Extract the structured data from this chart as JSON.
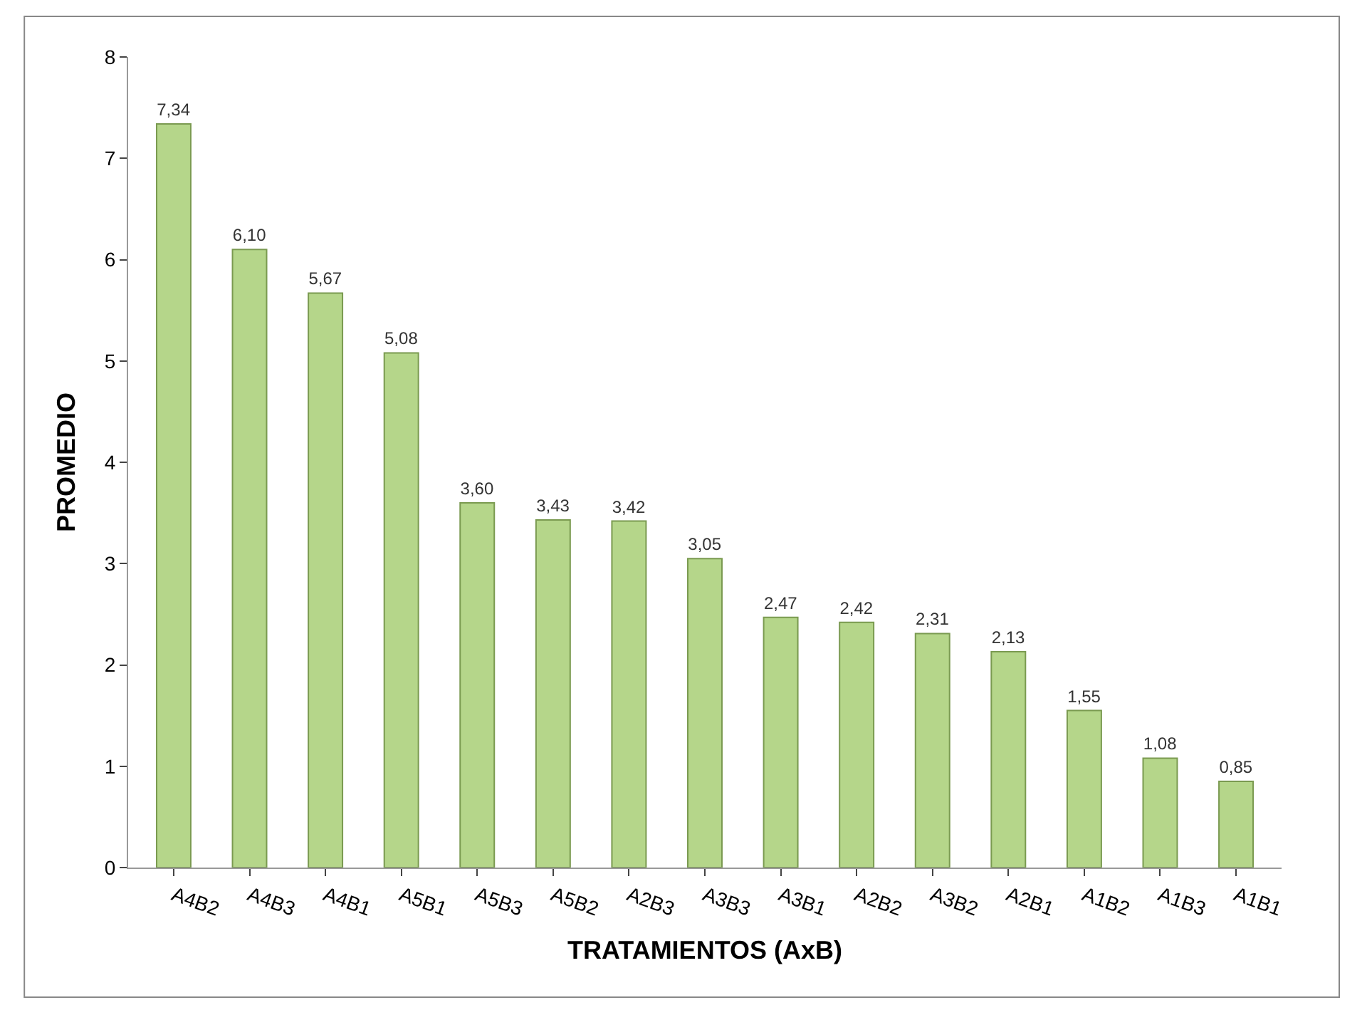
{
  "chart_data": {
    "type": "bar",
    "xlabel": "TRATAMIENTOS (AxB)",
    "ylabel": "PROMEDIO",
    "categories": [
      "A4B2",
      "A4B3",
      "A4B1",
      "A5B1",
      "A5B3",
      "A5B2",
      "A2B3",
      "A3B3",
      "A3B1",
      "A2B2",
      "A3B2",
      "A2B1",
      "A1B2",
      "A1B3",
      "A1B1"
    ],
    "values": [
      7.34,
      6.1,
      5.67,
      5.08,
      3.6,
      3.43,
      3.42,
      3.05,
      2.47,
      2.42,
      2.31,
      2.13,
      1.55,
      1.08,
      0.85
    ],
    "value_labels": [
      "7,34",
      "6,10",
      "5,67",
      "5,08",
      "3,60",
      "3,43",
      "3,42",
      "3,05",
      "2,47",
      "2,42",
      "2,31",
      "2,13",
      "1,55",
      "1,08",
      "0,85"
    ],
    "color": "#b5d68a",
    "ylim": [
      0,
      8
    ],
    "yticks": [
      0,
      1,
      2,
      3,
      4,
      5,
      6,
      7,
      8
    ]
  }
}
